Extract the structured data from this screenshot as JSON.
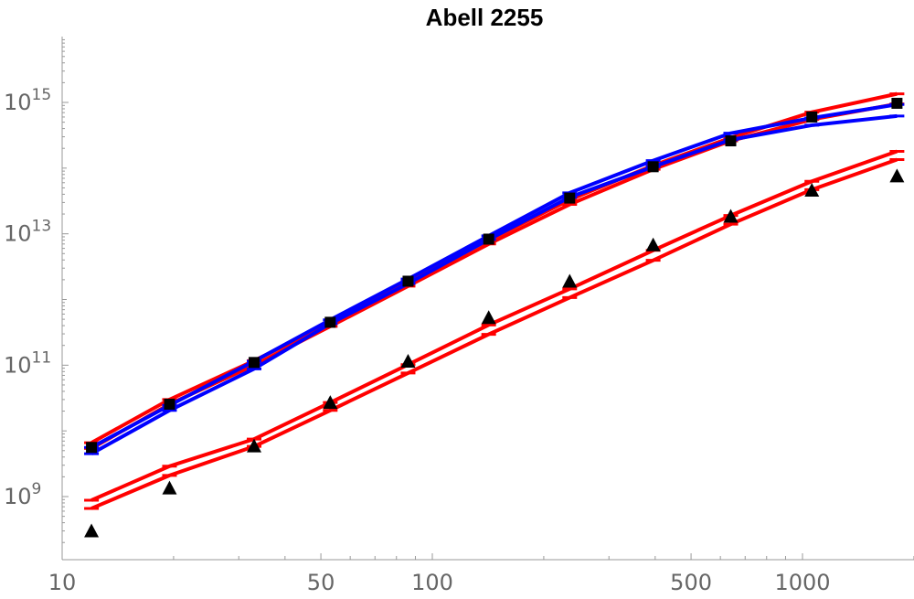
{
  "chart_data": {
    "type": "line",
    "title": "Abell 2255",
    "xlabel": "",
    "ylabel": "",
    "xscale": "log",
    "yscale": "log",
    "xlim": [
      10,
      2200
    ],
    "ylim": [
      180000000.0,
      1e+16
    ],
    "x_ticks": [
      {
        "value": 10,
        "label": "10"
      },
      {
        "value": 50,
        "label": "50"
      },
      {
        "value": 100,
        "label": "100"
      },
      {
        "value": 500,
        "label": "500"
      },
      {
        "value": 1000,
        "label": "1000"
      }
    ],
    "y_ticks": [
      {
        "value": 1000000000.0,
        "base": "10",
        "exp": "9"
      },
      {
        "value": 100000000000.0,
        "base": "10",
        "exp": "11"
      },
      {
        "value": 10000000000000.0,
        "base": "10",
        "exp": "13"
      },
      {
        "value": 1000000000000000.0,
        "base": "10",
        "exp": "15"
      }
    ],
    "x": [
      12,
      19.5,
      33,
      53,
      86,
      142,
      235,
      395,
      640,
      1060,
      1800
    ],
    "series": [
      {
        "color": "#ff0000",
        "marker": "tick",
        "values": [
          6600000000.0,
          30000000000.0,
          117000000000.0,
          440000000000.0,
          1950000000000.0,
          8000000000000.0,
          33000000000000.0,
          110000000000000.0,
          290000000000000.0,
          710000000000000.0,
          1350000000000000.0
        ]
      },
      {
        "color": "#ff0000",
        "marker": "tick",
        "values": [
          5400000000.0,
          25500000000.0,
          100000000000.0,
          390000000000.0,
          1600000000000.0,
          7000000000000.0,
          28000000000000.0,
          96000000000000.0,
          260000000000000.0,
          550000000000000.0,
          950000000000000.0
        ]
      },
      {
        "color": "#0000ff",
        "marker": "tick",
        "values": [
          5600000000.0,
          24500000000.0,
          115000000000.0,
          490000000000.0,
          2050000000000.0,
          9300000000000.0,
          42000000000000.0,
          130000000000000.0,
          340000000000000.0,
          580000000000000.0,
          930000000000000.0
        ]
      },
      {
        "color": "#0000ff",
        "marker": "tick",
        "values": [
          4500000000.0,
          20500000000.0,
          88000000000.0,
          430000000000.0,
          1750000000000.0,
          8200000000000.0,
          36000000000000.0,
          105000000000000.0,
          270000000000000.0,
          450000000000000.0,
          620000000000000.0
        ]
      },
      {
        "color": "#ff0000",
        "marker": "tick",
        "values": [
          880000000.0,
          2900000000.0,
          7500000000.0,
          27000000000.0,
          102000000000.0,
          410000000000.0,
          1450000000000.0,
          5600000000000.0,
          19000000000000.0,
          63000000000000.0,
          180000000000000.0
        ]
      },
      {
        "color": "#ff0000",
        "marker": "tick",
        "values": [
          660000000.0,
          2100000000.0,
          5800000000.0,
          20500000000.0,
          76000000000.0,
          295000000000.0,
          1070000000000.0,
          3950000000000.0,
          14000000000000.0,
          47000000000000.0,
          135000000000000.0
        ]
      }
    ],
    "points": [
      {
        "marker": "square",
        "color": "#000000",
        "values": [
          5600000000.0,
          25500000000.0,
          110000000000.0,
          450000000000.0,
          1900000000000.0,
          8300000000000.0,
          35000000000000.0,
          105000000000000.0,
          260000000000000.0,
          600000000000000.0,
          970000000000000.0
        ]
      },
      {
        "marker": "triangle",
        "color": "#000000",
        "values": [
          300000000.0,
          1350000000.0,
          5900000000.0,
          27000000000.0,
          115000000000.0,
          530000000000.0,
          1900000000000.0,
          6800000000000.0,
          18500000000000.0,
          46000000000000.0,
          76000000000000.0
        ]
      }
    ]
  }
}
